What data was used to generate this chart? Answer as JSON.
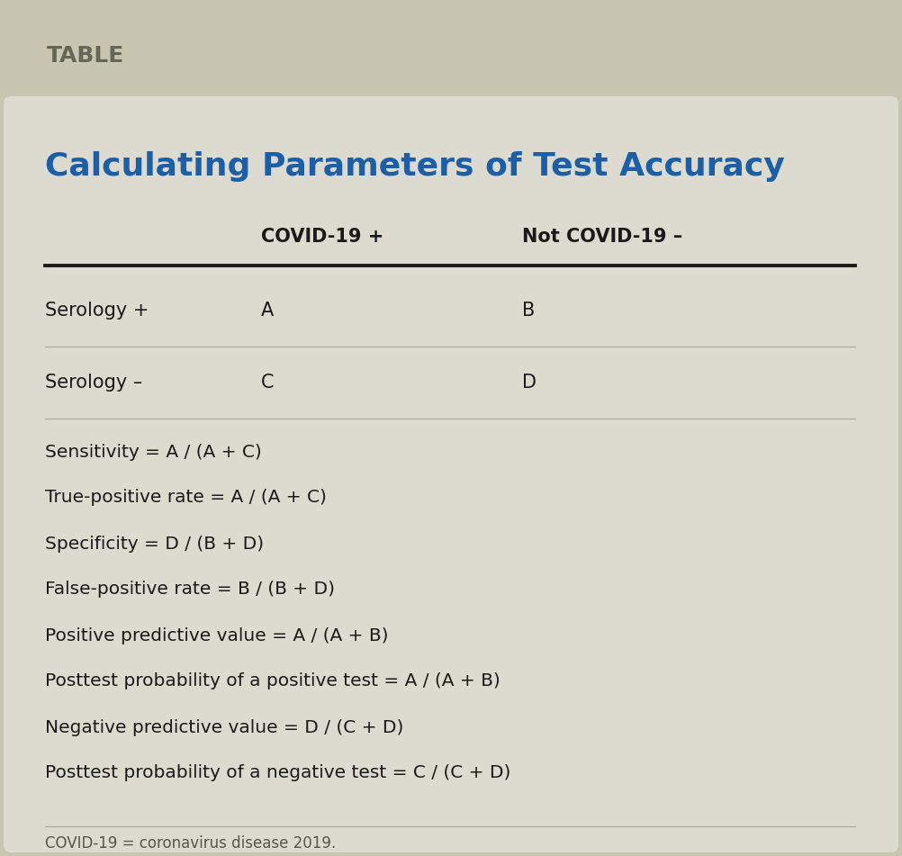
{
  "outer_bg": "#c8c5b0",
  "header_bg": "#c8c5b0",
  "content_bg": "#dddbd0",
  "header_label": "TABLE",
  "header_label_color": "#666658",
  "title": "Calculating Parameters of Test Accuracy",
  "title_color": "#1a5fa8",
  "col_headers": [
    "",
    "COVID-19 +",
    "Not COVID-19 –"
  ],
  "col_header_color": "#1a1a1a",
  "row1_label": "Serology +",
  "row1_vals": [
    "A",
    "B"
  ],
  "row2_label": "Serology –",
  "row2_vals": [
    "C",
    "D"
  ],
  "formulas": [
    "Sensitivity = A / (A + C)",
    "True-positive rate = A / (A + C)",
    "Specificity = D / (B + D)",
    "False-positive rate = B / (B + D)",
    "Positive predictive value = A / (A + B)",
    "Posttest probability of a positive test = A / (A + B)",
    "Negative predictive value = D / (C + D)",
    "Posttest probability of a negative test = C / (C + D)"
  ],
  "footnote": "COVID-19 = coronavirus disease 2019.",
  "formula_color": "#1a1a1a",
  "footnote_color": "#555548",
  "thick_line_color": "#1a1a1a",
  "thin_line_color": "#b0ada0"
}
